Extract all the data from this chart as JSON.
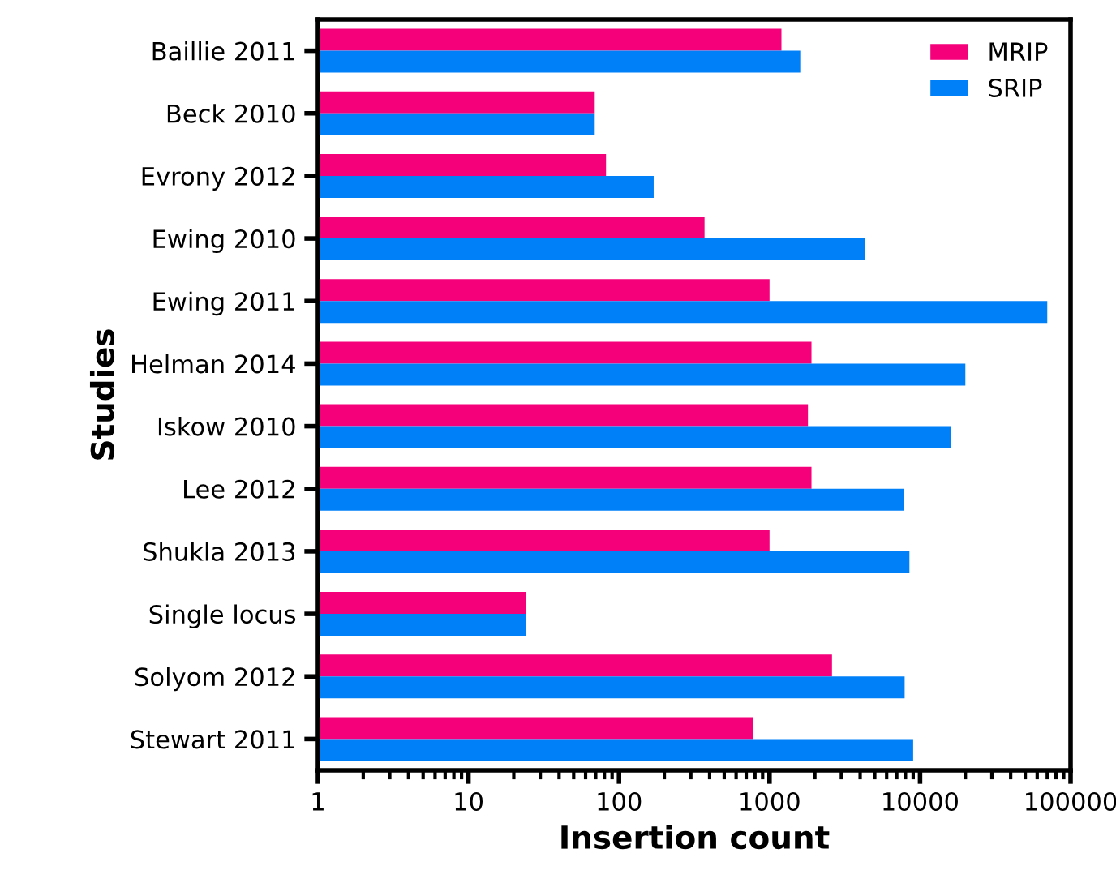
{
  "chart_data": {
    "type": "bar",
    "orientation": "horizontal",
    "log": "x",
    "xlabel": "Insertion count",
    "ylabel": "Studies",
    "categories": [
      "Baillie 2011",
      "Beck 2010",
      "Evrony 2012",
      "Ewing 2010",
      "Ewing 2011",
      "Helman 2014",
      "Iskow 2010",
      "Lee 2012",
      "Shukla 2013",
      "Single locus",
      "Solyom 2012",
      "Stewart 2011"
    ],
    "series": [
      {
        "name": "MRIP",
        "color": "#f5007a",
        "values": [
          1200,
          69,
          82,
          370,
          1000,
          1900,
          1800,
          1900,
          1000,
          24,
          2600,
          780
        ]
      },
      {
        "name": "SRIP",
        "color": "#0080f8",
        "values": [
          1600,
          69,
          170,
          4300,
          70000,
          20000,
          16000,
          7800,
          8500,
          24,
          7900,
          9000
        ]
      }
    ],
    "xlim": [
      1,
      100000
    ],
    "xticks": [
      1,
      10,
      100,
      1000,
      10000,
      100000
    ],
    "grid": false,
    "legend": "top right"
  }
}
